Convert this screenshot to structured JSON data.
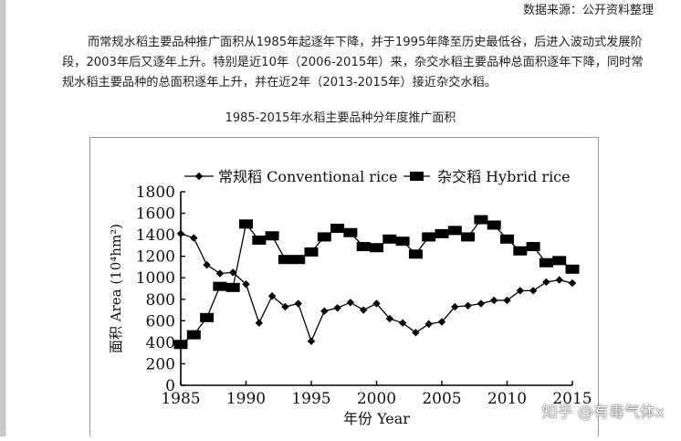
{
  "source_line": "数据来源：公开资料整理",
  "paragraph": "而常规水稻主要品种推广面积从1985年起逐年下降，并于1995年降至历史最低谷，后进入波动式发展阶段，2003年后又逐年上升。特别是近10年（2006-2015年）来，杂交水稻主要品种总面积逐年下降，同时常规水稻主要品种的总面积逐年上升，并在近2年（2013-2015年）接近杂交水稻。",
  "caption": "1985-2015年水稻主要品种分年度推广面积",
  "watermark": "知乎 @有毒气体x",
  "chart_data": {
    "type": "line",
    "xlabel": "年份 Year",
    "ylabel": "面积 Area (10⁴hm²)",
    "xlim": [
      1985,
      2015
    ],
    "ylim": [
      0,
      1800
    ],
    "x_ticks": [
      1985,
      1990,
      1995,
      2000,
      2005,
      2010,
      2015
    ],
    "y_ticks": [
      0,
      200,
      400,
      600,
      800,
      1000,
      1200,
      1400,
      1600,
      1800
    ],
    "grid": false,
    "legend_position": "top",
    "x": [
      1985,
      1986,
      1987,
      1988,
      1989,
      1990,
      1991,
      1992,
      1993,
      1994,
      1995,
      1996,
      1997,
      1998,
      1999,
      2000,
      2001,
      2002,
      2003,
      2004,
      2005,
      2006,
      2007,
      2008,
      2009,
      2010,
      2011,
      2012,
      2013,
      2014,
      2015
    ],
    "series": [
      {
        "name": "常规稻 Conventional rice",
        "marker": "diamond",
        "values": [
          1410,
          1370,
          1120,
          1040,
          1050,
          940,
          580,
          830,
          730,
          760,
          410,
          690,
          720,
          770,
          700,
          760,
          620,
          580,
          490,
          570,
          590,
          730,
          740,
          760,
          790,
          790,
          880,
          880,
          960,
          980,
          950
        ]
      },
      {
        "name": "杂交稻 Hybrid rice",
        "marker": "square",
        "values": [
          380,
          470,
          630,
          920,
          910,
          1500,
          1350,
          1390,
          1170,
          1170,
          1240,
          1380,
          1460,
          1420,
          1290,
          1280,
          1360,
          1340,
          1220,
          1380,
          1410,
          1440,
          1380,
          1540,
          1490,
          1360,
          1250,
          1290,
          1140,
          1160,
          1080
        ]
      }
    ]
  }
}
